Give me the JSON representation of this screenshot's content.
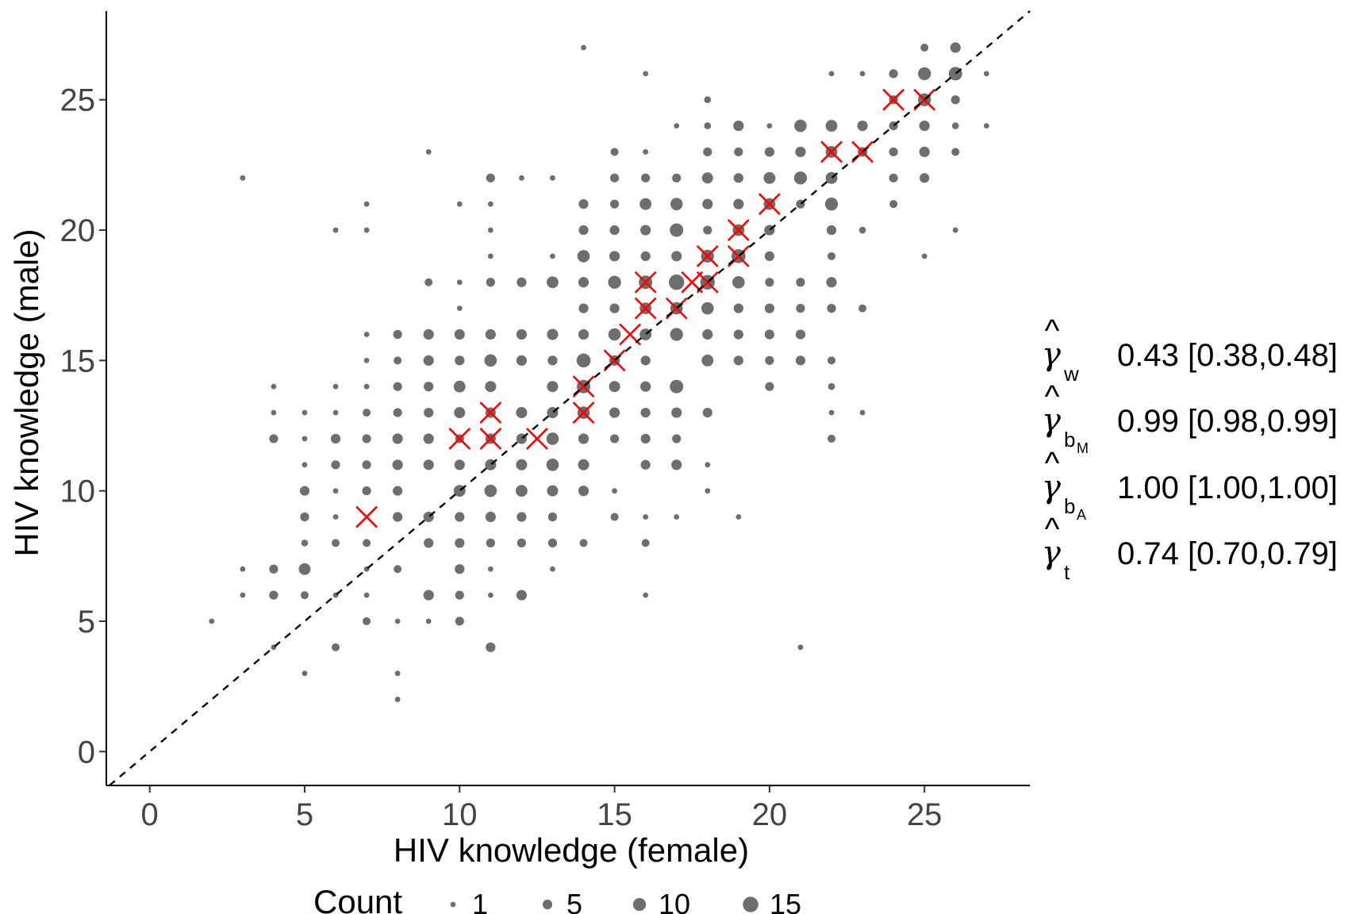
{
  "chart_data": {
    "type": "scatter",
    "xlabel": "HIV knowledge (female)",
    "ylabel": "HIV knowledge (male)",
    "xlim": [
      -1.4,
      28.4
    ],
    "ylim": [
      -1.3,
      28.4
    ],
    "xticks": [
      0,
      5,
      10,
      15,
      20,
      25
    ],
    "yticks": [
      0,
      5,
      10,
      15,
      20,
      25
    ],
    "reference_line": {
      "type": "identity",
      "style": "dashed",
      "color": "#000000"
    },
    "point_color": "#6e6e6e",
    "cross_color": "#ff0000",
    "legend": {
      "title": "Count",
      "position": "bottom",
      "items": [
        1,
        5,
        10,
        15
      ]
    },
    "counts": [
      [
        2,
        5,
        1
      ],
      [
        3,
        7,
        1
      ],
      [
        3,
        6,
        1
      ],
      [
        3,
        22,
        1
      ],
      [
        4,
        14,
        1
      ],
      [
        4,
        13,
        1
      ],
      [
        4,
        12,
        4
      ],
      [
        4,
        7,
        4
      ],
      [
        4,
        6,
        4
      ],
      [
        4,
        4,
        1
      ],
      [
        5,
        13,
        1
      ],
      [
        5,
        12,
        1
      ],
      [
        5,
        11,
        1
      ],
      [
        5,
        10,
        5
      ],
      [
        5,
        9,
        4
      ],
      [
        5,
        8,
        2
      ],
      [
        5,
        7,
        8
      ],
      [
        5,
        6,
        3
      ],
      [
        5,
        3,
        1
      ],
      [
        6,
        20,
        1
      ],
      [
        6,
        14,
        1
      ],
      [
        6,
        13,
        1
      ],
      [
        6,
        12,
        5
      ],
      [
        6,
        11,
        4
      ],
      [
        6,
        10,
        1
      ],
      [
        6,
        9,
        1
      ],
      [
        6,
        8,
        3
      ],
      [
        6,
        6,
        1
      ],
      [
        6,
        4,
        3
      ],
      [
        7,
        21,
        1
      ],
      [
        7,
        20,
        1
      ],
      [
        7,
        16,
        1
      ],
      [
        7,
        15,
        1
      ],
      [
        7,
        14,
        1
      ],
      [
        7,
        13,
        3
      ],
      [
        7,
        12,
        4
      ],
      [
        7,
        11,
        4
      ],
      [
        7,
        10,
        4
      ],
      [
        7,
        8,
        3
      ],
      [
        7,
        7,
        1
      ],
      [
        7,
        6,
        1
      ],
      [
        7,
        5,
        3
      ],
      [
        8,
        16,
        4
      ],
      [
        8,
        15,
        3
      ],
      [
        8,
        14,
        4
      ],
      [
        8,
        13,
        4
      ],
      [
        8,
        12,
        6
      ],
      [
        8,
        11,
        6
      ],
      [
        8,
        10,
        5
      ],
      [
        8,
        9,
        5
      ],
      [
        8,
        7,
        3
      ],
      [
        8,
        5,
        1
      ],
      [
        8,
        3,
        1
      ],
      [
        8,
        2,
        1
      ],
      [
        9,
        23,
        1
      ],
      [
        9,
        18,
        3
      ],
      [
        9,
        16,
        6
      ],
      [
        9,
        15,
        6
      ],
      [
        9,
        14,
        5
      ],
      [
        9,
        13,
        5
      ],
      [
        9,
        12,
        6
      ],
      [
        9,
        11,
        6
      ],
      [
        9,
        9,
        6
      ],
      [
        9,
        8,
        5
      ],
      [
        9,
        6,
        6
      ],
      [
        9,
        5,
        1
      ],
      [
        10,
        21,
        1
      ],
      [
        10,
        18,
        1
      ],
      [
        10,
        17,
        1
      ],
      [
        10,
        16,
        6
      ],
      [
        10,
        15,
        5
      ],
      [
        10,
        14,
        8
      ],
      [
        10,
        13,
        7
      ],
      [
        10,
        12,
        4
      ],
      [
        10,
        11,
        6
      ],
      [
        10,
        10,
        8
      ],
      [
        10,
        9,
        5
      ],
      [
        10,
        8,
        5
      ],
      [
        10,
        7,
        5
      ],
      [
        10,
        6,
        4
      ],
      [
        10,
        5,
        4
      ],
      [
        11,
        22,
        4
      ],
      [
        11,
        21,
        1
      ],
      [
        11,
        20,
        1
      ],
      [
        11,
        19,
        1
      ],
      [
        11,
        18,
        4
      ],
      [
        11,
        16,
        6
      ],
      [
        11,
        15,
        9
      ],
      [
        11,
        14,
        7
      ],
      [
        11,
        13,
        6
      ],
      [
        11,
        12,
        6
      ],
      [
        11,
        11,
        7
      ],
      [
        11,
        10,
        9
      ],
      [
        11,
        9,
        6
      ],
      [
        11,
        8,
        4
      ],
      [
        11,
        7,
        1
      ],
      [
        11,
        6,
        1
      ],
      [
        11,
        4,
        5
      ],
      [
        12,
        22,
        1
      ],
      [
        12,
        18,
        5
      ],
      [
        12,
        16,
        6
      ],
      [
        12,
        15,
        6
      ],
      [
        12,
        13,
        7
      ],
      [
        12,
        12,
        6
      ],
      [
        12,
        11,
        7
      ],
      [
        12,
        10,
        8
      ],
      [
        12,
        9,
        5
      ],
      [
        12,
        8,
        4
      ],
      [
        12,
        6,
        6
      ],
      [
        13,
        22,
        1
      ],
      [
        13,
        19,
        1
      ],
      [
        13,
        18,
        8
      ],
      [
        13,
        16,
        7
      ],
      [
        13,
        15,
        5
      ],
      [
        13,
        14,
        7
      ],
      [
        13,
        13,
        7
      ],
      [
        13,
        12,
        9
      ],
      [
        13,
        11,
        9
      ],
      [
        13,
        10,
        7
      ],
      [
        13,
        9,
        4
      ],
      [
        13,
        8,
        4
      ],
      [
        13,
        7,
        1
      ],
      [
        14,
        27,
        1
      ],
      [
        14,
        21,
        5
      ],
      [
        14,
        20,
        5
      ],
      [
        14,
        19,
        9
      ],
      [
        14,
        18,
        6
      ],
      [
        14,
        17,
        5
      ],
      [
        14,
        16,
        6
      ],
      [
        14,
        15,
        12
      ],
      [
        14,
        14,
        11
      ],
      [
        14,
        13,
        9
      ],
      [
        14,
        12,
        6
      ],
      [
        14,
        11,
        7
      ],
      [
        14,
        10,
        6
      ],
      [
        14,
        8,
        3
      ],
      [
        15,
        23,
        3
      ],
      [
        15,
        22,
        4
      ],
      [
        15,
        21,
        4
      ],
      [
        15,
        20,
        5
      ],
      [
        15,
        19,
        6
      ],
      [
        15,
        18,
        10
      ],
      [
        15,
        17,
        5
      ],
      [
        15,
        16,
        9
      ],
      [
        15,
        15,
        6
      ],
      [
        15,
        14,
        7
      ],
      [
        15,
        13,
        6
      ],
      [
        15,
        12,
        4
      ],
      [
        15,
        10,
        1
      ],
      [
        15,
        9,
        3
      ],
      [
        16,
        26,
        1
      ],
      [
        16,
        23,
        1
      ],
      [
        16,
        22,
        4
      ],
      [
        16,
        21,
        8
      ],
      [
        16,
        20,
        6
      ],
      [
        16,
        19,
        5
      ],
      [
        16,
        18,
        11
      ],
      [
        16,
        17,
        8
      ],
      [
        16,
        16,
        8
      ],
      [
        16,
        15,
        5
      ],
      [
        16,
        14,
        6
      ],
      [
        16,
        13,
        5
      ],
      [
        16,
        12,
        5
      ],
      [
        16,
        11,
        5
      ],
      [
        16,
        9,
        1
      ],
      [
        16,
        8,
        3
      ],
      [
        16,
        6,
        1
      ],
      [
        17,
        24,
        1
      ],
      [
        17,
        22,
        4
      ],
      [
        17,
        21,
        9
      ],
      [
        17,
        20,
        11
      ],
      [
        17,
        19,
        6
      ],
      [
        17,
        18,
        15
      ],
      [
        17,
        17,
        9
      ],
      [
        17,
        16,
        10
      ],
      [
        17,
        14,
        11
      ],
      [
        17,
        13,
        6
      ],
      [
        17,
        12,
        4
      ],
      [
        17,
        11,
        6
      ],
      [
        17,
        9,
        1
      ],
      [
        18,
        25,
        2
      ],
      [
        18,
        24,
        2
      ],
      [
        18,
        23,
        4
      ],
      [
        18,
        22,
        7
      ],
      [
        18,
        21,
        6
      ],
      [
        18,
        20,
        4
      ],
      [
        18,
        19,
        10
      ],
      [
        18,
        18,
        13
      ],
      [
        18,
        17,
        9
      ],
      [
        18,
        16,
        6
      ],
      [
        18,
        15,
        8
      ],
      [
        18,
        13,
        5
      ],
      [
        18,
        11,
        1
      ],
      [
        18,
        10,
        1
      ],
      [
        19,
        24,
        6
      ],
      [
        19,
        23,
        4
      ],
      [
        19,
        22,
        5
      ],
      [
        19,
        21,
        6
      ],
      [
        19,
        20,
        8
      ],
      [
        19,
        19,
        12
      ],
      [
        19,
        18,
        9
      ],
      [
        19,
        17,
        5
      ],
      [
        19,
        16,
        5
      ],
      [
        19,
        15,
        5
      ],
      [
        19,
        9,
        1
      ],
      [
        20,
        24,
        1
      ],
      [
        20,
        23,
        5
      ],
      [
        20,
        22,
        8
      ],
      [
        20,
        21,
        8
      ],
      [
        20,
        20,
        6
      ],
      [
        20,
        19,
        5
      ],
      [
        20,
        18,
        4
      ],
      [
        20,
        17,
        5
      ],
      [
        20,
        16,
        5
      ],
      [
        20,
        15,
        4
      ],
      [
        20,
        14,
        4
      ],
      [
        21,
        24,
        9
      ],
      [
        21,
        23,
        6
      ],
      [
        21,
        22,
        10
      ],
      [
        21,
        21,
        4
      ],
      [
        21,
        18,
        4
      ],
      [
        21,
        17,
        4
      ],
      [
        21,
        16,
        5
      ],
      [
        21,
        15,
        5
      ],
      [
        21,
        4,
        1
      ],
      [
        22,
        26,
        1
      ],
      [
        22,
        24,
        8
      ],
      [
        22,
        23,
        8
      ],
      [
        22,
        22,
        8
      ],
      [
        22,
        21,
        10
      ],
      [
        22,
        20,
        5
      ],
      [
        22,
        19,
        3
      ],
      [
        22,
        18,
        6
      ],
      [
        22,
        17,
        4
      ],
      [
        22,
        15,
        3
      ],
      [
        22,
        14,
        2
      ],
      [
        22,
        13,
        1
      ],
      [
        22,
        12,
        3
      ],
      [
        23,
        26,
        1
      ],
      [
        23,
        24,
        6
      ],
      [
        23,
        23,
        5
      ],
      [
        23,
        20,
        2
      ],
      [
        23,
        17,
        3
      ],
      [
        23,
        13,
        1
      ],
      [
        24,
        26,
        4
      ],
      [
        24,
        25,
        4
      ],
      [
        24,
        24,
        4
      ],
      [
        24,
        23,
        4
      ],
      [
        24,
        22,
        4
      ],
      [
        24,
        21,
        3
      ],
      [
        25,
        27,
        3
      ],
      [
        25,
        26,
        10
      ],
      [
        25,
        25,
        10
      ],
      [
        25,
        24,
        6
      ],
      [
        25,
        23,
        6
      ],
      [
        25,
        22,
        5
      ],
      [
        25,
        19,
        1
      ],
      [
        26,
        27,
        6
      ],
      [
        26,
        26,
        11
      ],
      [
        26,
        25,
        4
      ],
      [
        26,
        24,
        2
      ],
      [
        26,
        23,
        3
      ],
      [
        26,
        20,
        1
      ],
      [
        27,
        26,
        1
      ],
      [
        27,
        24,
        1
      ]
    ],
    "crosses": [
      [
        7,
        9
      ],
      [
        10,
        12
      ],
      [
        11,
        12
      ],
      [
        11,
        13
      ],
      [
        12.5,
        12
      ],
      [
        14,
        13
      ],
      [
        14,
        14
      ],
      [
        15,
        15
      ],
      [
        15.5,
        16
      ],
      [
        16,
        17
      ],
      [
        16,
        18
      ],
      [
        17,
        17
      ],
      [
        17.5,
        18
      ],
      [
        18,
        18
      ],
      [
        18,
        19
      ],
      [
        19,
        19
      ],
      [
        19,
        20
      ],
      [
        20,
        21
      ],
      [
        22,
        23
      ],
      [
        23,
        23
      ],
      [
        24,
        25
      ],
      [
        25,
        25
      ]
    ],
    "annotations": [
      {
        "symbol": "γ",
        "sub": "w",
        "subsub": "",
        "text": "0.43 [0.38,0.48]"
      },
      {
        "symbol": "γ",
        "sub": "b",
        "subsub": "M",
        "text": "0.99 [0.98,0.99]"
      },
      {
        "symbol": "γ",
        "sub": "b",
        "subsub": "A",
        "text": "1.00 [1.00,1.00]"
      },
      {
        "symbol": "γ",
        "sub": "t",
        "subsub": "",
        "text": "0.74 [0.70,0.79]"
      }
    ]
  }
}
